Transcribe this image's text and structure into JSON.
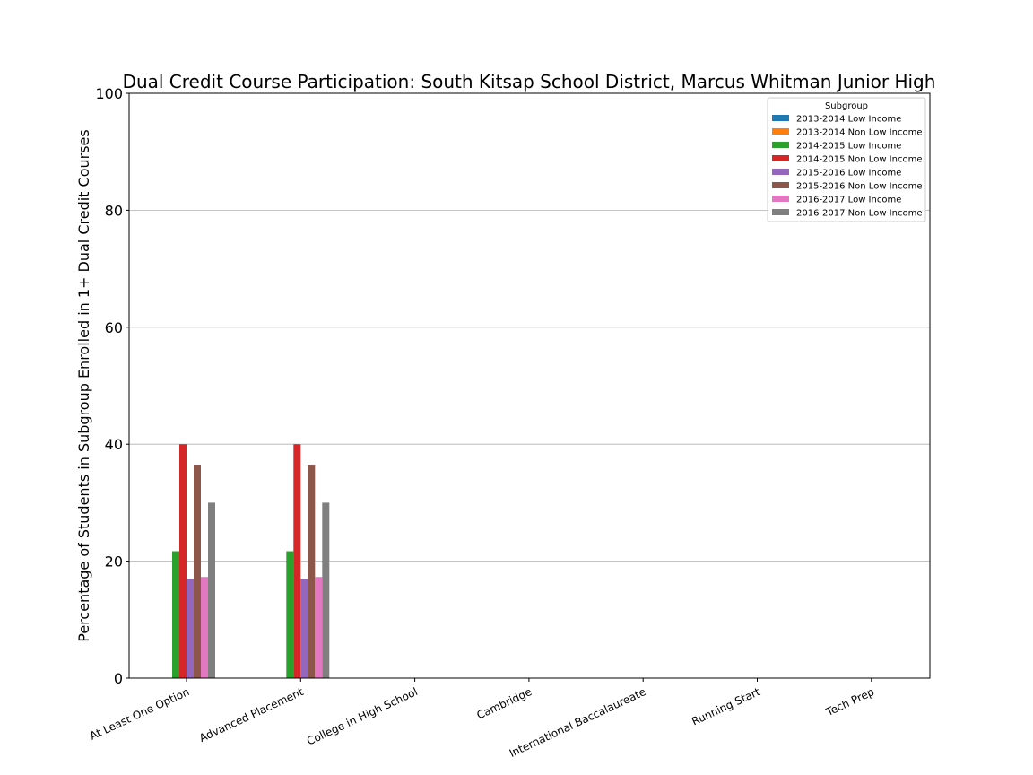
{
  "chart_data": {
    "type": "bar",
    "title": "Dual Credit Course Participation: South Kitsap School District, Marcus Whitman Junior High",
    "xlabel": "",
    "ylabel": "Percentage of Students in Subgroup Enrolled in 1+ Dual Credit Courses",
    "ylim": [
      0,
      100
    ],
    "yticks": [
      "0",
      "20",
      "40",
      "60",
      "80",
      "100"
    ],
    "grid": "horizontal",
    "legend_title": "Subgroup",
    "legend_position": "top-right",
    "categories": [
      "At Least One Option",
      "Advanced Placement",
      "College in High School",
      "Cambridge",
      "International Baccalaureate",
      "Running Start",
      "Tech Prep"
    ],
    "series": [
      {
        "name": "2013-2014 Low Income",
        "color": "#1f77b4",
        "values": [
          0,
          0,
          0,
          0,
          0,
          0,
          0
        ]
      },
      {
        "name": "2013-2014 Non Low Income",
        "color": "#ff7f0e",
        "values": [
          0,
          0,
          0,
          0,
          0,
          0,
          0
        ]
      },
      {
        "name": "2014-2015 Low Income",
        "color": "#2ca02c",
        "values": [
          21.7,
          21.7,
          0,
          0,
          0,
          0,
          0
        ]
      },
      {
        "name": "2014-2015 Non Low Income",
        "color": "#d62728",
        "values": [
          40.0,
          40.0,
          0,
          0,
          0,
          0,
          0
        ]
      },
      {
        "name": "2015-2016 Low Income",
        "color": "#9467bd",
        "values": [
          17.0,
          17.0,
          0,
          0,
          0,
          0,
          0
        ]
      },
      {
        "name": "2015-2016 Non Low Income",
        "color": "#8c564b",
        "values": [
          36.5,
          36.5,
          0,
          0,
          0,
          0,
          0
        ]
      },
      {
        "name": "2016-2017 Low Income",
        "color": "#e377c2",
        "values": [
          17.3,
          17.3,
          0,
          0,
          0,
          0,
          0
        ]
      },
      {
        "name": "2016-2017 Non Low Income",
        "color": "#7f7f7f",
        "values": [
          30.0,
          30.0,
          0,
          0,
          0,
          0,
          0
        ]
      }
    ]
  }
}
